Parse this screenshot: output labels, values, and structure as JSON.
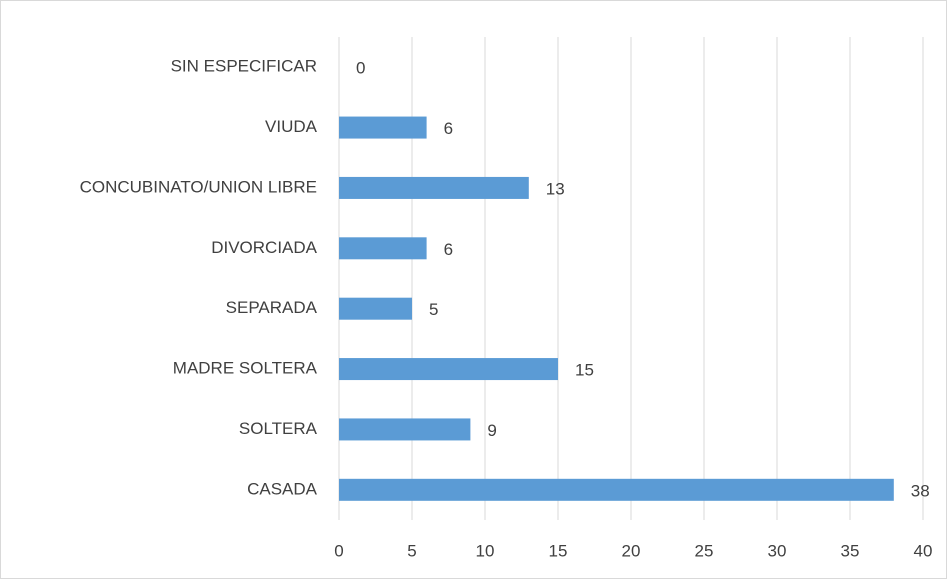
{
  "chart_data": {
    "type": "bar",
    "orientation": "horizontal",
    "categories": [
      "SIN ESPECIFICAR",
      "VIUDA",
      "CONCUBINATO/UNION LIBRE",
      "DIVORCIADA",
      "SEPARADA",
      "MADRE SOLTERA",
      "SOLTERA",
      "CASADA"
    ],
    "values": [
      0,
      6,
      13,
      6,
      5,
      15,
      9,
      38
    ],
    "color": "#5b9bd5",
    "xlim": [
      0,
      40
    ],
    "xticks": [
      0,
      5,
      10,
      15,
      20,
      25,
      30,
      35,
      40
    ],
    "grid": true
  }
}
